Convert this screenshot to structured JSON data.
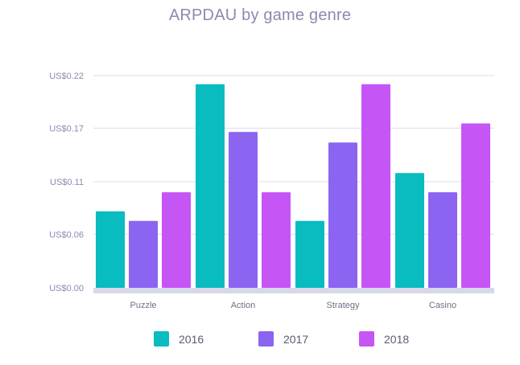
{
  "chart_data": {
    "type": "bar",
    "title": "ARPDAU by game genre",
    "categories": [
      "Puzzle",
      "Action",
      "Strategy",
      "Casino"
    ],
    "series": [
      {
        "name": "2016",
        "color": "#08bcc0",
        "values": [
          0.08,
          0.213,
          0.07,
          0.12
        ]
      },
      {
        "name": "2017",
        "color": "#8b64f2",
        "values": [
          0.07,
          0.163,
          0.152,
          0.1
        ]
      },
      {
        "name": "2018",
        "color": "#c655f5",
        "values": [
          0.1,
          0.1,
          0.213,
          0.172
        ]
      }
    ],
    "yticks": [
      {
        "value": 0.0,
        "label": "US$0.00"
      },
      {
        "value": 0.056,
        "label": "US$0.06"
      },
      {
        "value": 0.111,
        "label": "US$0.11"
      },
      {
        "value": 0.167,
        "label": "US$0.17"
      },
      {
        "value": 0.222,
        "label": "US$0.22"
      }
    ],
    "ylim": [
      0,
      0.222
    ],
    "grid": true,
    "legend_position": "bottom-center",
    "xlabel": "",
    "ylabel": ""
  }
}
